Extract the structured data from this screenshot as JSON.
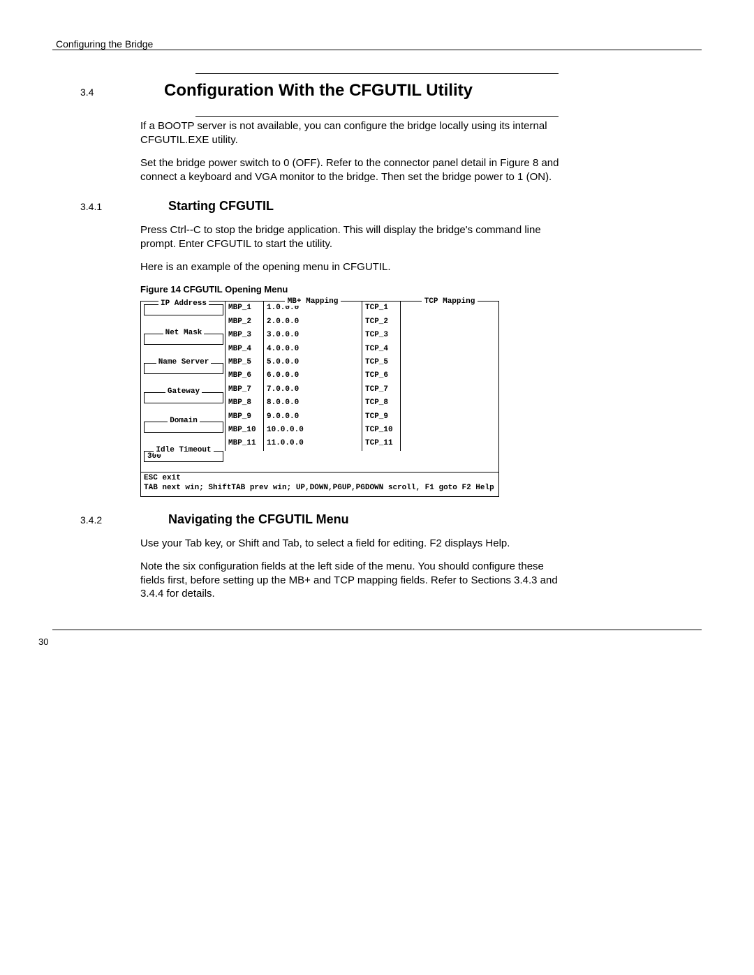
{
  "running_head": "Configuring the Bridge",
  "page_number": "30",
  "section": {
    "num": "3.4",
    "title": "Configuration With the CFGUTIL Utility",
    "p1": "If a BOOTP server is not available, you can configure the bridge locally using its internal CFGUTIL.EXE utility.",
    "p2": "Set the bridge power switch to 0 (OFF).  Refer to the connector panel detail in Figure 8 and connect a keyboard and VGA monitor to the bridge.  Then set the bridge power to 1 (ON)."
  },
  "sub1": {
    "num": "3.4.1",
    "title": "Starting CFGUTIL",
    "p1": "Press Ctrl--C to stop the bridge application.  This will display the bridge's command line prompt.  Enter  CFGUTIL  to start the utility.",
    "p2": "Here is an example of the opening menu in CFGUTIL.",
    "fig_caption": "Figure 14    CFGUTIL Opening Menu"
  },
  "sub2": {
    "num": "3.4.2",
    "title": "Navigating the CFGUTIL Menu",
    "p1": "Use your Tab key, or Shift and Tab, to select a field for editing.  F2 displays Help.",
    "p2": "Note the six configuration fields at the left side of the menu.  You should configure these fields first, before setting up the MB+ and TCP mapping fields.  Refer to Sections 3.4.3 and 3.4.4 for details."
  },
  "term": {
    "left_labels": [
      "IP Address",
      "Net Mask",
      "Name Server",
      "Gateway",
      "Domain",
      "Idle Timeout"
    ],
    "idle_timeout_value": "300",
    "mbp_title": "MB+ Mapping",
    "tcp_title": "TCP Mapping",
    "mbp_rows": [
      {
        "k": "MBP_1",
        "v": "1.0.0.0"
      },
      {
        "k": "MBP_2",
        "v": "2.0.0.0"
      },
      {
        "k": "MBP_3",
        "v": "3.0.0.0"
      },
      {
        "k": "MBP_4",
        "v": "4.0.0.0"
      },
      {
        "k": "MBP_5",
        "v": "5.0.0.0"
      },
      {
        "k": "MBP_6",
        "v": "6.0.0.0"
      },
      {
        "k": "MBP_7",
        "v": "7.0.0.0"
      },
      {
        "k": "MBP_8",
        "v": "8.0.0.0"
      },
      {
        "k": "MBP_9",
        "v": "9.0.0.0"
      },
      {
        "k": "MBP_10",
        "v": "10.0.0.0"
      },
      {
        "k": "MBP_11",
        "v": "11.0.0.0"
      }
    ],
    "tcp_rows": [
      {
        "k": "TCP_1",
        "v": ""
      },
      {
        "k": "TCP_2",
        "v": ""
      },
      {
        "k": "TCP_3",
        "v": ""
      },
      {
        "k": "TCP_4",
        "v": ""
      },
      {
        "k": "TCP_5",
        "v": ""
      },
      {
        "k": "TCP_6",
        "v": ""
      },
      {
        "k": "TCP_7",
        "v": ""
      },
      {
        "k": "TCP_8",
        "v": ""
      },
      {
        "k": "TCP_9",
        "v": ""
      },
      {
        "k": "TCP_10",
        "v": ""
      },
      {
        "k": "TCP_11",
        "v": ""
      }
    ],
    "footer1": "ESC exit",
    "footer2": "TAB next win; ShiftTAB prev win; UP,DOWN,PGUP,PGDOWN scroll, F1 goto F2 Help"
  }
}
